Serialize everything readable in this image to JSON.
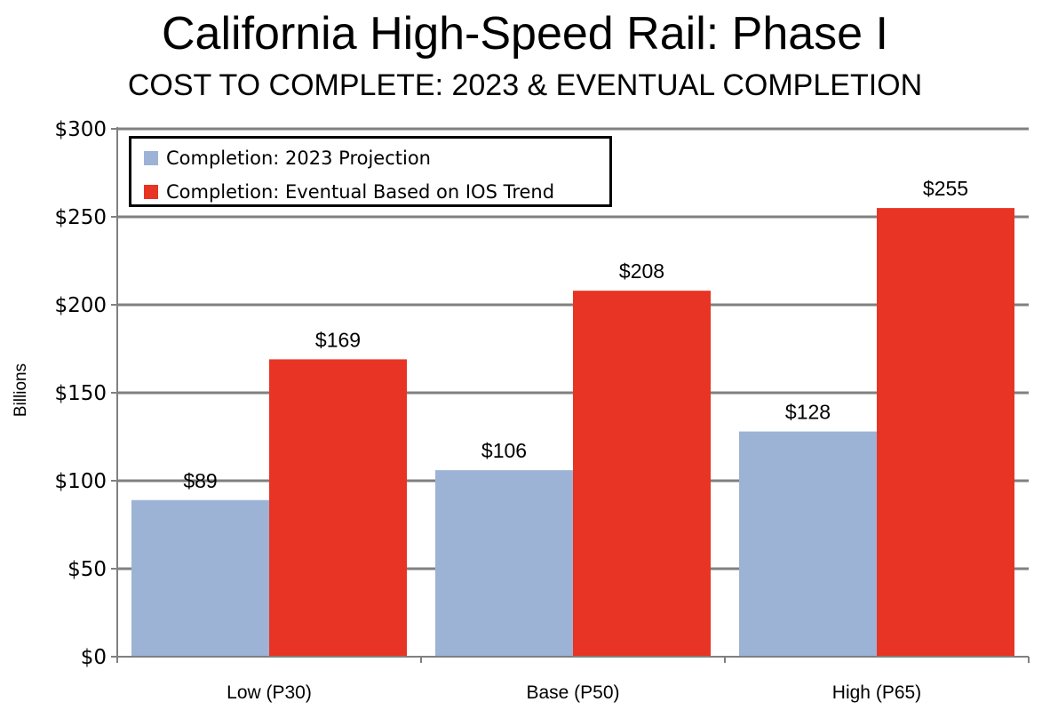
{
  "header": {
    "title": "California High-Speed Rail: Phase I",
    "subtitle": "COST TO COMPLETE: 2023 & EVENTUAL COMPLETION"
  },
  "legend": {
    "items": [
      {
        "label": "Completion: 2023 Projection",
        "color": "#9db3d6"
      },
      {
        "label": "Completion: Eventual Based on IOS Trend",
        "color": "#e83424"
      }
    ],
    "placement": "top-left"
  },
  "chart_data": {
    "type": "bar",
    "title": "California High-Speed Rail: Phase I",
    "subtitle": "COST TO COMPLETE: 2023 & EVENTUAL COMPLETION",
    "xlabel": "",
    "ylabel": "Billions",
    "categories": [
      "Low (P30)",
      "Base (P50)",
      "High (P65)"
    ],
    "series": [
      {
        "name": "Completion: 2023 Projection",
        "values": [
          89,
          106,
          128
        ],
        "labels": [
          "$89",
          "$106",
          "$128"
        ],
        "color": "#9db3d6"
      },
      {
        "name": "Completion: Eventual Based on IOS Trend",
        "values": [
          169,
          208,
          255
        ],
        "labels": [
          "$169",
          "$208",
          "$255"
        ],
        "color": "#e83424"
      }
    ],
    "ylim": [
      0,
      300
    ],
    "yticks": [
      0,
      50,
      100,
      150,
      200,
      250,
      300
    ],
    "ytick_labels": [
      "$0",
      "$50",
      "$100",
      "$150",
      "$200",
      "$250",
      "$300"
    ],
    "grid": true,
    "legend_position": "top-left"
  }
}
